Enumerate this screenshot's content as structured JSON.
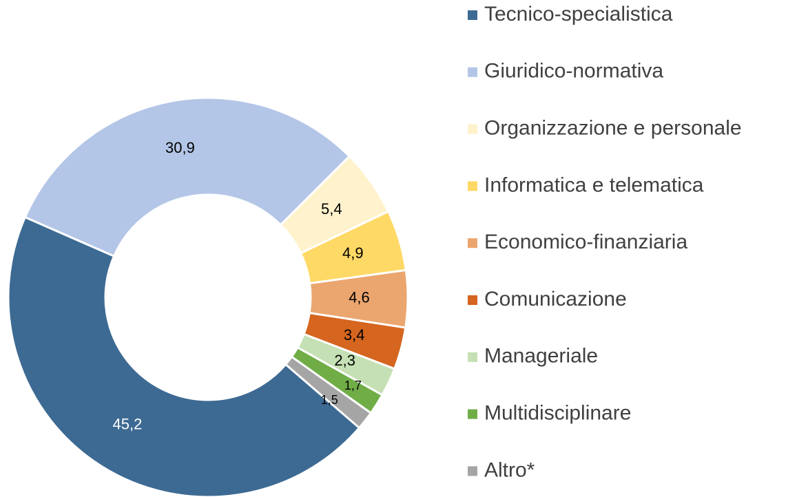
{
  "chart_data": {
    "type": "donut",
    "categories": [
      "Tecnico-specialistica",
      "Giuridico-normativa",
      "Organizzazione e personale",
      "Informatica e telematica",
      "Economico-finanziaria",
      "Comunicazione",
      "Manageriale",
      "Multidisciplinare",
      "Altro*"
    ],
    "values": [
      45.2,
      30.9,
      5.4,
      4.9,
      4.6,
      3.4,
      2.3,
      1.7,
      1.5
    ],
    "value_labels": [
      "45,2",
      "30,9",
      "5,4",
      "4,9",
      "4,6",
      "3,4",
      "2,3",
      "1,7",
      "1,5"
    ],
    "colors": [
      "#3d6a93",
      "#b4c6e7",
      "#fff2cc",
      "#ffd966",
      "#eba56e",
      "#d5651f",
      "#c5e0b4",
      "#70ad47",
      "#a5a5a5"
    ],
    "legend": "right"
  }
}
